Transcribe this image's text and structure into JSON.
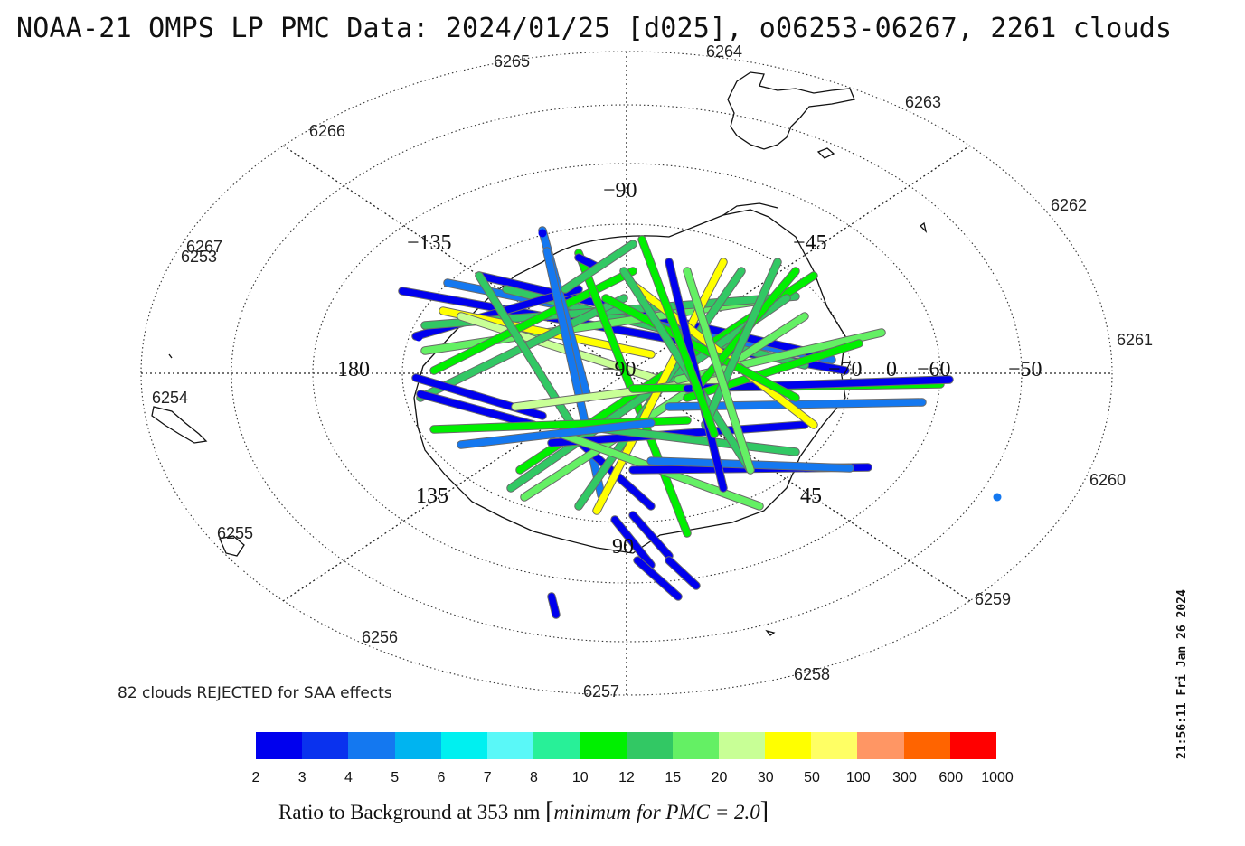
{
  "title": "NOAA-21 OMPS LP PMC Data: 2024/01/25 [d025], o06253-06267, 2261 clouds",
  "rejected_note": "82 clouds REJECTED for SAA effects",
  "timestamp": "21:56:11 Fri Jan 26 2024",
  "map_grid_labels": {
    "lon_m90_top": "−90",
    "lon_m135": "−135",
    "lon_m45": "−45",
    "lon_180": "180",
    "lon_m90_center": "−90",
    "lon_135": "135",
    "lon_45": "45",
    "lon_90": "90",
    "lat_m70": "−70",
    "lat_0": "0",
    "lat_m60": "−60",
    "lat_m50": "−50"
  },
  "orbit_labels": [
    "6253",
    "6254",
    "6255",
    "6256",
    "6257",
    "6258",
    "6259",
    "6260",
    "6261",
    "6262",
    "6263",
    "6264",
    "6265",
    "6266",
    "6267"
  ],
  "colorbar": {
    "colors": [
      "#0000ee",
      "#0a32ee",
      "#1478f0",
      "#00b4f0",
      "#00f0f0",
      "#5af8f8",
      "#28f098",
      "#00f000",
      "#32c864",
      "#64f064",
      "#c8ff96",
      "#ffff00",
      "#ffff64",
      "#ff9664",
      "#ff6400",
      "#ff0000"
    ],
    "ticks": [
      "2",
      "3",
      "4",
      "5",
      "6",
      "7",
      "8",
      "10",
      "12",
      "15",
      "20",
      "30",
      "50",
      "100",
      "300",
      "600",
      "1000"
    ],
    "label_main": "Ratio to Background at 353 nm",
    "label_italic": "minimum for PMC",
    "label_value": "= 2.0"
  },
  "palette": {
    "dark_blue": "#0000ee",
    "blue": "#1478f0",
    "cyan": "#00d8f0",
    "green": "#00f000",
    "mid_green": "#32c864",
    "light_green": "#64f064",
    "pale_green": "#c8ff96",
    "yellow": "#ffff00"
  }
}
